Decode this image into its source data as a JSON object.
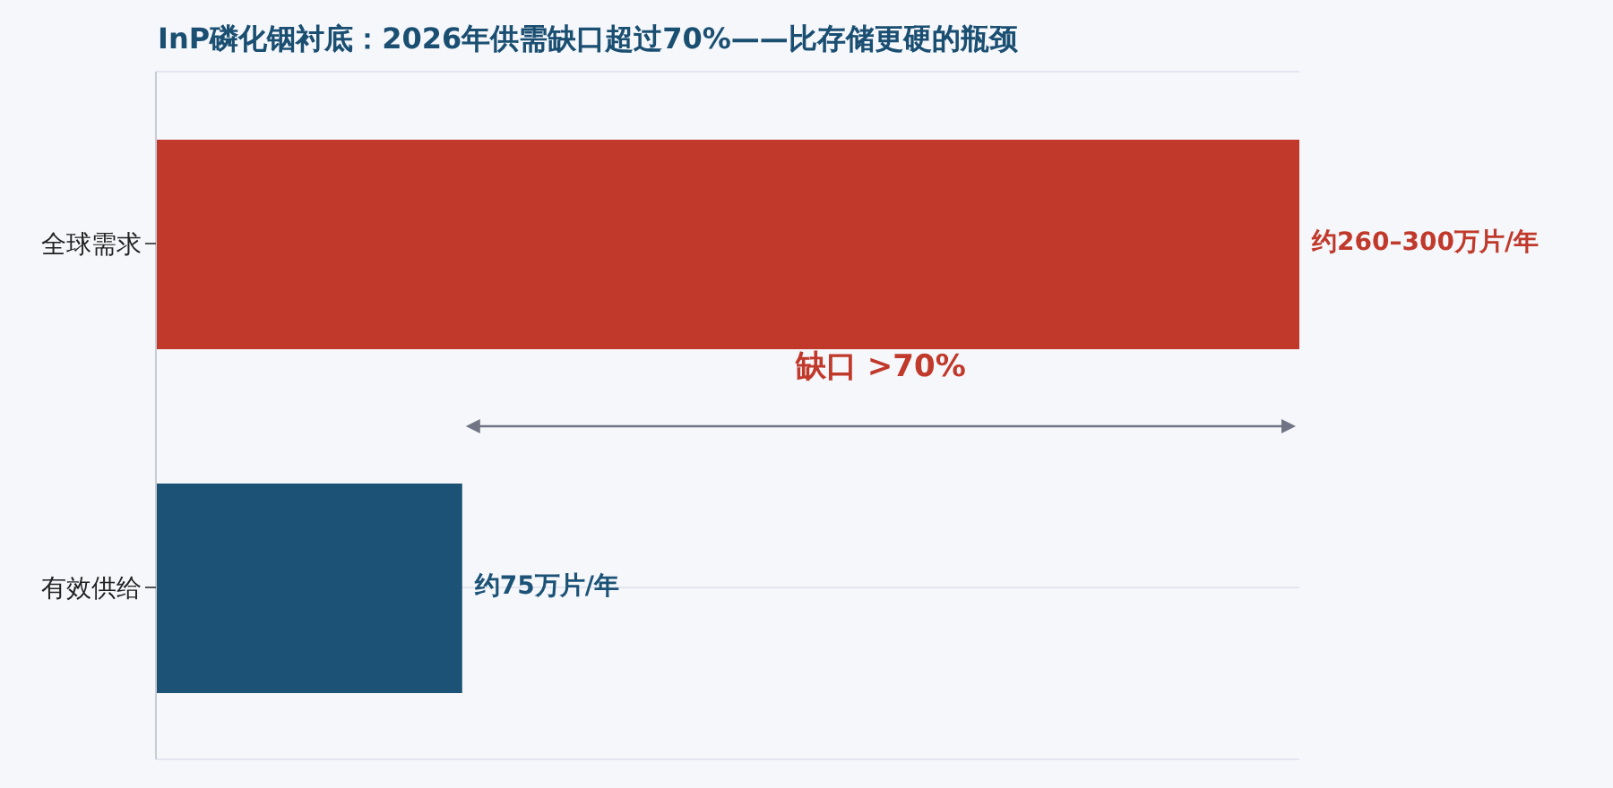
{
  "chart_data": {
    "type": "bar",
    "orientation": "horizontal",
    "title": "InP磷化铟衬底：2026年供需缺口超过70%——比存储更硬的瓶颈",
    "categories": [
      "全球需求",
      "有效供给"
    ],
    "values": [
      280,
      75
    ],
    "colors": [
      "#c0392b",
      "#1b5276"
    ],
    "value_labels": [
      "约260–300万片/年",
      "约75万片/年"
    ],
    "annotations": [
      "缺口 >70%"
    ],
    "grid": "y"
  }
}
